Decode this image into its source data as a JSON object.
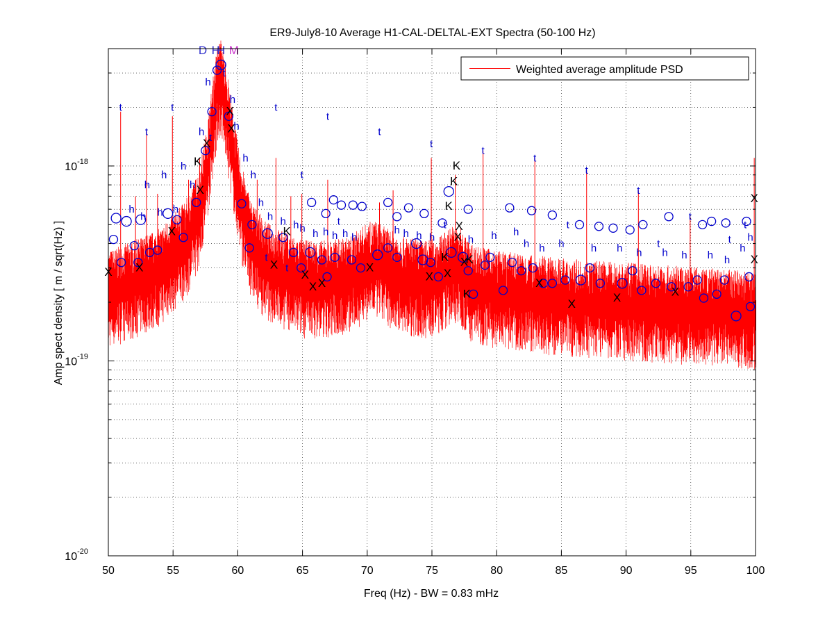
{
  "chart_data": {
    "type": "line",
    "title": "ER9-July8-10 Average H1-CAL-DELTAL-EXT Spectra (50-100 Hz)",
    "xlabel": "Freq (Hz) - BW = 0.83 mHz",
    "ylabel": "Amp spect density [ m / sqrt(Hz) ]",
    "xlim": [
      50,
      100
    ],
    "ylim": [
      1e-20,
      4e-18
    ],
    "yscale": "log",
    "grid": true,
    "legend_position": "top-right",
    "x_ticks": [
      "50",
      "55",
      "60",
      "65",
      "70",
      "75",
      "80",
      "85",
      "90",
      "95",
      "100"
    ],
    "y_ticks": [
      {
        "base": "10",
        "exp": "-18",
        "value": 1e-18
      },
      {
        "base": "10",
        "exp": "-19",
        "value": 1e-19
      },
      {
        "base": "10",
        "exp": "-20",
        "value": 1e-20
      }
    ],
    "series": [
      {
        "name": "Weighted average amplitude PSD",
        "color": "#ff0000",
        "baseline_envelope": {
          "x": [
            50,
            52,
            54,
            56,
            57,
            57.5,
            58,
            58.4,
            58.7,
            59,
            59.4,
            60,
            60.5,
            61,
            62,
            63,
            65,
            67,
            68.5,
            70,
            70.6,
            71.5,
            73,
            74.5,
            75.5,
            76.5,
            77.2,
            78,
            80,
            85,
            90,
            95,
            100
          ],
          "y": [
            2.3e-19,
            2.6e-19,
            3e-19,
            4.2e-19,
            6e-19,
            9e-19,
            1.6e-18,
            2.6e-18,
            2.8e-18,
            2.2e-18,
            1.5e-18,
            8e-19,
            5.5e-19,
            4.2e-19,
            3.3e-19,
            3e-19,
            2.6e-19,
            2.6e-19,
            2.7e-19,
            3.2e-19,
            3.3e-19,
            3e-19,
            2.7e-19,
            2.6e-19,
            2.7e-19,
            3.1e-19,
            3e-19,
            2.5e-19,
            2.3e-19,
            2.1e-19,
            2e-19,
            1.9e-19,
            1.8e-19
          ]
        },
        "lines": [
          {
            "x": 50.95,
            "y": 1.9e-18,
            "marker": "o"
          },
          {
            "x": 52.1,
            "y": 7e-19,
            "marker": "o"
          },
          {
            "x": 52.95,
            "y": 1.5e-18,
            "marker": "t"
          },
          {
            "x": 53.8,
            "y": 7.2e-19,
            "marker": "o"
          },
          {
            "x": 54.95,
            "y": 1.8e-18,
            "marker": "t"
          },
          {
            "x": 56.2,
            "y": 8.5e-19,
            "marker": "o"
          },
          {
            "x": 57.05,
            "y": 1.1e-18,
            "marker": "o"
          },
          {
            "x": 60.5,
            "y": 8e-19,
            "marker": "o"
          },
          {
            "x": 61.5,
            "y": 8.5e-19,
            "marker": "o"
          },
          {
            "x": 62.95,
            "y": 1.1e-18,
            "marker": "t"
          },
          {
            "x": 64.1,
            "y": 7e-19,
            "marker": "o"
          },
          {
            "x": 64.95,
            "y": 7.2e-19,
            "marker": "o"
          },
          {
            "x": 66.95,
            "y": 8.5e-19,
            "marker": "t"
          },
          {
            "x": 70.95,
            "y": 6.5e-19,
            "marker": "t"
          },
          {
            "x": 72.0,
            "y": 7.5e-19,
            "marker": "o"
          },
          {
            "x": 74.95,
            "y": 1.1e-18,
            "marker": "t"
          },
          {
            "x": 76.8,
            "y": 9e-19,
            "marker": "K"
          },
          {
            "x": 78.95,
            "y": 1.2e-18,
            "marker": "t"
          },
          {
            "x": 82.95,
            "y": 1.1e-18,
            "marker": "t"
          },
          {
            "x": 86.95,
            "y": 9.5e-19,
            "marker": "t"
          },
          {
            "x": 90.95,
            "y": 7.5e-19,
            "marker": "t"
          },
          {
            "x": 94.95,
            "y": 5.5e-19,
            "marker": "t"
          },
          {
            "x": 99.9,
            "y": 1.1e-18,
            "marker": "h"
          }
        ]
      }
    ],
    "marker_legend": {
      "o": "blue circle",
      "t": "blue letter t",
      "h": "blue letter h",
      "X": "black letter X",
      "K": "black letter K",
      "D": "blue letter D",
      "H": "blue letter H",
      "M": "magenta letter M"
    },
    "peak_labels": [
      {
        "text": "D",
        "x": 57.3,
        "color": "#3333cc"
      },
      {
        "text": "H",
        "x": 58.3,
        "color": "#3333cc"
      },
      {
        "text": "H",
        "x": 58.7,
        "color": "#3333cc"
      },
      {
        "text": "M",
        "x": 59.7,
        "color": "#cc33cc"
      }
    ],
    "labels_t": [
      [
        50.95,
        2e-18
      ],
      [
        52.95,
        1.5e-18
      ],
      [
        54.95,
        2e-18
      ],
      [
        57.9,
        1.4e-18
      ],
      [
        58.95,
        3e-18
      ],
      [
        62.95,
        2e-18
      ],
      [
        64.95,
        9e-19
      ],
      [
        66.95,
        1.8e-18
      ],
      [
        70.95,
        1.5e-18
      ],
      [
        74.95,
        1.3e-18
      ],
      [
        78.95,
        1.2e-18
      ],
      [
        82.95,
        1.1e-18
      ],
      [
        86.95,
        9.5e-19
      ],
      [
        90.95,
        7.5e-19
      ],
      [
        94.95,
        5.5e-19
      ],
      [
        67.8,
        5.2e-19
      ],
      [
        76.0,
        5e-19
      ],
      [
        85.5,
        5e-19
      ],
      [
        92.5,
        4e-19
      ],
      [
        98.0,
        4.2e-19
      ],
      [
        62.2,
        3.4e-19
      ],
      [
        63.8,
        3e-19
      ],
      [
        99.2,
        5e-19
      ]
    ],
    "labels_h": [
      [
        57.7,
        2.7e-18
      ],
      [
        57.2,
        1.5e-18
      ],
      [
        55.8,
        1e-18
      ],
      [
        54.3,
        9e-19
      ],
      [
        56.5,
        8e-19
      ],
      [
        53.0,
        8e-19
      ],
      [
        51.8,
        6e-19
      ],
      [
        52.7,
        5.5e-19
      ],
      [
        54.0,
        5.8e-19
      ],
      [
        55.2,
        6e-19
      ],
      [
        59.6,
        2.2e-18
      ],
      [
        59.9,
        1.6e-18
      ],
      [
        60.6,
        1.1e-18
      ],
      [
        61.2,
        9e-19
      ],
      [
        61.8,
        6.5e-19
      ],
      [
        62.5,
        5.5e-19
      ],
      [
        63.5,
        5.2e-19
      ],
      [
        64.5,
        5e-19
      ],
      [
        65.0,
        4.8e-19
      ],
      [
        66.0,
        4.5e-19
      ],
      [
        66.8,
        4.6e-19
      ],
      [
        67.5,
        4.4e-19
      ],
      [
        68.3,
        4.5e-19
      ],
      [
        69.0,
        4.3e-19
      ],
      [
        72.3,
        4.7e-19
      ],
      [
        73.0,
        4.5e-19
      ],
      [
        74.0,
        4.4e-19
      ],
      [
        75.0,
        4.3e-19
      ],
      [
        78.0,
        4.2e-19
      ],
      [
        79.8,
        4.4e-19
      ],
      [
        81.5,
        4.6e-19
      ],
      [
        82.3,
        4e-19
      ],
      [
        83.5,
        3.8e-19
      ],
      [
        85.0,
        4e-19
      ],
      [
        87.5,
        3.8e-19
      ],
      [
        89.5,
        3.8e-19
      ],
      [
        91.0,
        3.6e-19
      ],
      [
        93.0,
        3.6e-19
      ],
      [
        94.5,
        3.5e-19
      ],
      [
        96.5,
        3.5e-19
      ],
      [
        97.8,
        3.3e-19
      ],
      [
        99.0,
        3.8e-19
      ],
      [
        99.6,
        4.3e-19
      ]
    ],
    "labels_x": [
      [
        50.0,
        2.85e-19
      ],
      [
        52.4,
        3e-19
      ],
      [
        54.9,
        4.6e-19
      ],
      [
        57.1,
        7.5e-19
      ],
      [
        57.6,
        1.3e-18
      ],
      [
        59.4,
        1.9e-18
      ],
      [
        59.5,
        1.55e-18
      ],
      [
        62.8,
        3.1e-19
      ],
      [
        65.2,
        2.75e-19
      ],
      [
        65.8,
        2.4e-19
      ],
      [
        66.5,
        2.5e-19
      ],
      [
        70.2,
        3e-19
      ],
      [
        74.8,
        2.7e-19
      ],
      [
        77.1,
        4.9e-19
      ],
      [
        77.5,
        3.2e-19
      ],
      [
        83.3,
        2.5e-19
      ],
      [
        85.8,
        1.95e-19
      ],
      [
        89.3,
        2.1e-19
      ],
      [
        93.8,
        2.25e-19
      ],
      [
        99.9,
        6.8e-19
      ],
      [
        99.9,
        3.3e-19
      ],
      [
        76.2,
        2.8e-19
      ],
      [
        77.0,
        4.3e-19
      ]
    ],
    "labels_k": [
      [
        56.9,
        1.05e-18
      ],
      [
        76.9,
        1e-18
      ],
      [
        76.7,
        8.3e-19
      ],
      [
        76.3,
        6.2e-19
      ],
      [
        76.0,
        3.4e-19
      ],
      [
        77.7,
        2.2e-19
      ],
      [
        77.9,
        3.3e-19
      ],
      [
        63.8,
        4.6e-19
      ]
    ],
    "circles": [
      [
        50.6,
        5.4e-19,
        7
      ],
      [
        51.4,
        5.2e-19,
        7
      ],
      [
        52.5,
        5.3e-19,
        7
      ],
      [
        53.8,
        3.7e-19,
        6
      ],
      [
        54.6,
        5.7e-19,
        7
      ],
      [
        55.3,
        5.3e-19,
        6
      ],
      [
        56.8,
        6.5e-19,
        6
      ],
      [
        57.5,
        1.2e-18,
        6
      ],
      [
        58.4,
        3.1e-18,
        6
      ],
      [
        58.7,
        3.3e-18,
        7
      ],
      [
        59.3,
        1.8e-18,
        6
      ],
      [
        60.3,
        6.4e-19,
        6
      ],
      [
        61.1,
        5e-19,
        6
      ],
      [
        62.3,
        4.5e-19,
        7
      ],
      [
        63.5,
        4.3e-19,
        6
      ],
      [
        64.3,
        3.6e-19,
        6
      ],
      [
        65.6,
        3.6e-19,
        7
      ],
      [
        66.5,
        3.3e-19,
        6
      ],
      [
        67.5,
        3.4e-19,
        6
      ],
      [
        68.8,
        3.3e-19,
        6
      ],
      [
        70.8,
        3.5e-19,
        7
      ],
      [
        72.3,
        3.4e-19,
        6
      ],
      [
        73.8,
        4e-19,
        7
      ],
      [
        74.3,
        3.3e-19,
        7
      ],
      [
        75.5,
        2.7e-19,
        6
      ],
      [
        76.5,
        3.6e-19,
        7
      ],
      [
        77.4,
        3.4e-19,
        7
      ],
      [
        78.2,
        2.2e-19,
        6
      ],
      [
        79.5,
        3.4e-19,
        6
      ],
      [
        80.5,
        2.3e-19,
        6
      ],
      [
        81.2,
        3.2e-19,
        6
      ],
      [
        82.8,
        3e-19,
        6
      ],
      [
        83.6,
        2.5e-19,
        6
      ],
      [
        84.3,
        2.5e-19,
        6
      ],
      [
        85.3,
        2.6e-19,
        6
      ],
      [
        86.5,
        2.6e-19,
        7
      ],
      [
        88.0,
        2.5e-19,
        6
      ],
      [
        89.7,
        2.5e-19,
        7
      ],
      [
        91.2,
        2.3e-19,
        6
      ],
      [
        92.3,
        2.5e-19,
        6
      ],
      [
        93.5,
        2.4e-19,
        6
      ],
      [
        94.8,
        2.4e-19,
        6
      ],
      [
        96.0,
        2.1e-19,
        6
      ],
      [
        97.0,
        2.2e-19,
        6
      ],
      [
        98.5,
        1.7e-19,
        7
      ],
      [
        99.6,
        1.9e-19,
        6
      ],
      [
        51.0,
        3.2e-19,
        6
      ],
      [
        52.3,
        3.2e-19,
        6
      ],
      [
        58.0,
        1.9e-18,
        6
      ],
      [
        60.9,
        3.8e-19,
        6
      ],
      [
        55.8,
        4.3e-19,
        6
      ],
      [
        53.2,
        3.6e-19,
        6
      ],
      [
        64.9,
        3e-19,
        6
      ],
      [
        66.9,
        2.7e-19,
        6
      ],
      [
        69.5,
        3e-19,
        6
      ],
      [
        71.6,
        3.8e-19,
        6
      ],
      [
        74.9,
        3.2e-19,
        6
      ],
      [
        77.8,
        2.9e-19,
        6
      ],
      [
        79.1,
        3.1e-19,
        6
      ],
      [
        81.9,
        2.9e-19,
        6
      ],
      [
        87.2,
        3e-19,
        6
      ],
      [
        90.5,
        2.9e-19,
        6
      ],
      [
        95.5,
        2.6e-19,
        6
      ],
      [
        97.6,
        2.6e-19,
        6
      ],
      [
        99.5,
        2.7e-19,
        6
      ],
      [
        50.4,
        4.2e-19,
        6
      ],
      [
        52.0,
        3.9e-19,
        6
      ],
      [
        76.3,
        7.4e-19,
        7
      ],
      [
        75.8,
        5.1e-19,
        6
      ],
      [
        74.4,
        5.7e-19,
        6
      ],
      [
        73.2,
        6.1e-19,
        6
      ],
      [
        72.3,
        5.5e-19,
        6
      ],
      [
        71.6,
        6.5e-19,
        6
      ],
      [
        69.6,
        6.2e-19,
        6
      ],
      [
        68.9,
        6.3e-19,
        6
      ],
      [
        68.0,
        6.3e-19,
        6
      ],
      [
        67.4,
        6.7e-19,
        6
      ],
      [
        66.8,
        5.7e-19,
        6
      ],
      [
        65.7,
        6.5e-19,
        6
      ],
      [
        77.8,
        6e-19,
        6
      ],
      [
        81.0,
        6.1e-19,
        6
      ],
      [
        82.7,
        5.9e-19,
        6
      ],
      [
        84.3,
        5.6e-19,
        6
      ],
      [
        86.4,
        5e-19,
        6
      ],
      [
        87.9,
        4.9e-19,
        6
      ],
      [
        89.0,
        4.8e-19,
        6
      ],
      [
        90.3,
        4.7e-19,
        6
      ],
      [
        91.3,
        5e-19,
        6
      ],
      [
        93.3,
        5.5e-19,
        6
      ],
      [
        95.9,
        5e-19,
        6
      ],
      [
        96.6,
        5.2e-19,
        6
      ],
      [
        97.7,
        5.1e-19,
        6
      ],
      [
        99.3,
        5.2e-19,
        6
      ]
    ]
  }
}
